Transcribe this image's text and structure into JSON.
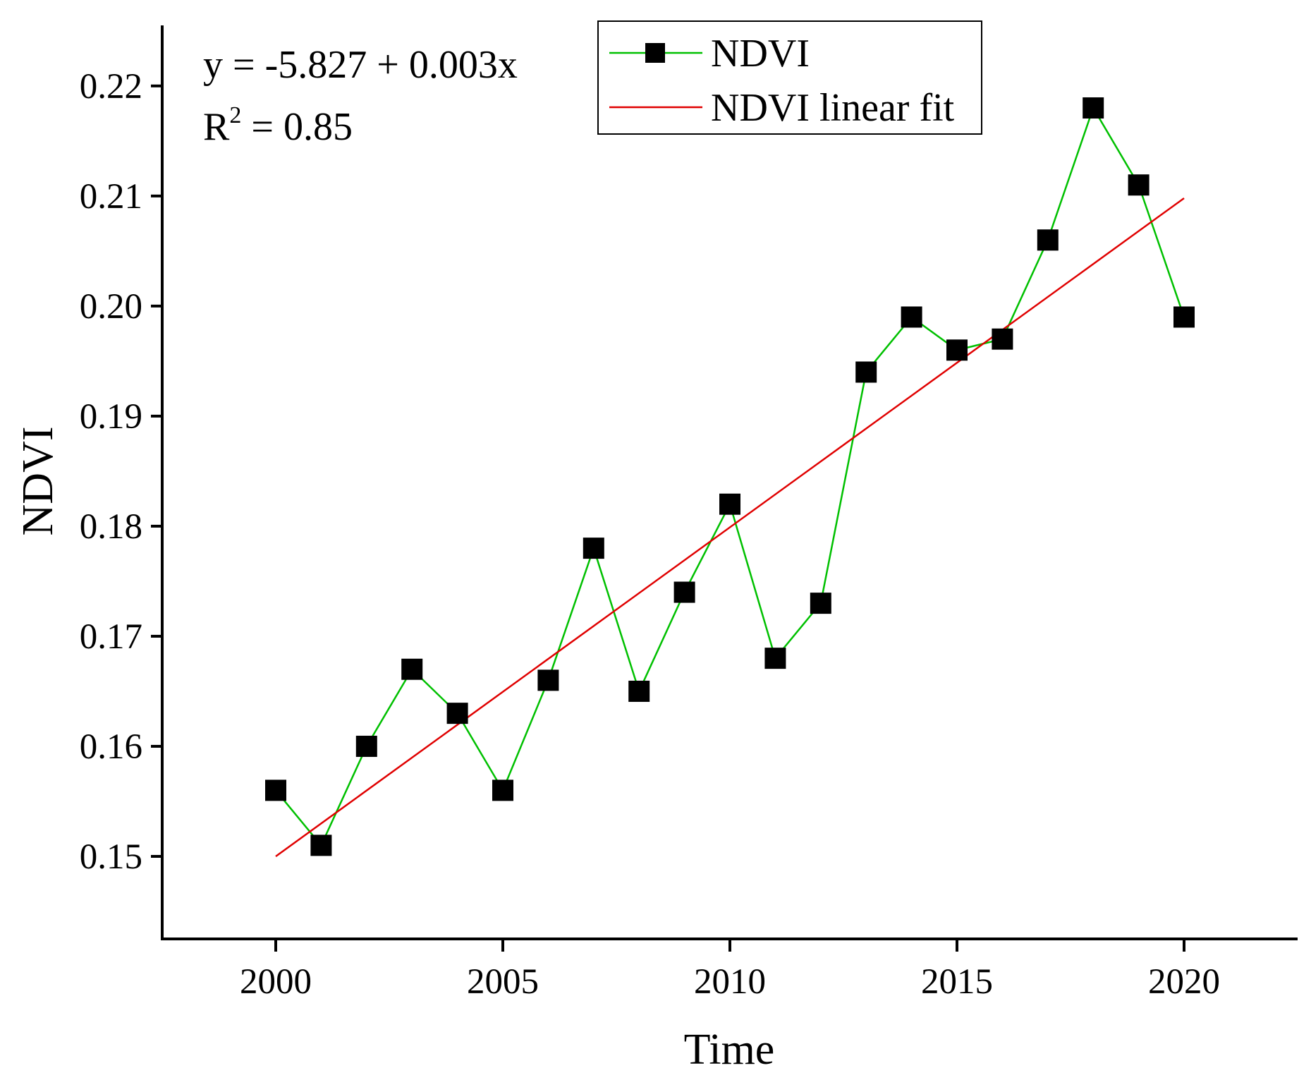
{
  "chart_data": {
    "type": "line",
    "title": "",
    "xlabel": "Time",
    "ylabel": "NDVI",
    "xlim": [
      1997.5,
      2022.5
    ],
    "ylim": [
      0.1425,
      0.2255
    ],
    "x_ticks": [
      2000,
      2005,
      2010,
      2015,
      2020
    ],
    "x_tick_labels": [
      "2000",
      "2005",
      "2010",
      "2015",
      "2020"
    ],
    "y_ticks": [
      0.15,
      0.16,
      0.17,
      0.18,
      0.19,
      0.2,
      0.21,
      0.22
    ],
    "y_tick_labels": [
      "0.15",
      "0.16",
      "0.17",
      "0.18",
      "0.19",
      "0.20",
      "0.21",
      "0.22"
    ],
    "grid": false,
    "legend_position": "top-center",
    "series": [
      {
        "name": "NDVI",
        "kind": "line-with-square-markers",
        "color": "#00c000",
        "marker_color": "#000000",
        "x": [
          2000,
          2001,
          2002,
          2003,
          2004,
          2005,
          2006,
          2007,
          2008,
          2009,
          2010,
          2011,
          2012,
          2013,
          2014,
          2015,
          2016,
          2017,
          2018,
          2019,
          2020
        ],
        "values": [
          0.156,
          0.151,
          0.16,
          0.167,
          0.163,
          0.156,
          0.166,
          0.178,
          0.165,
          0.174,
          0.182,
          0.168,
          0.173,
          0.194,
          0.199,
          0.196,
          0.197,
          0.206,
          0.218,
          0.211,
          0.199
        ]
      },
      {
        "name": "NDVI linear fit",
        "kind": "line",
        "color": "#e00000",
        "x": [
          2000,
          2020
        ],
        "values": [
          0.15,
          0.2098
        ]
      }
    ],
    "annotations": {
      "equation": "y = -5.827 + 0.003x",
      "r2_prefix": "R",
      "r2_superscript": "2",
      "r2_suffix": " = 0.85"
    }
  }
}
